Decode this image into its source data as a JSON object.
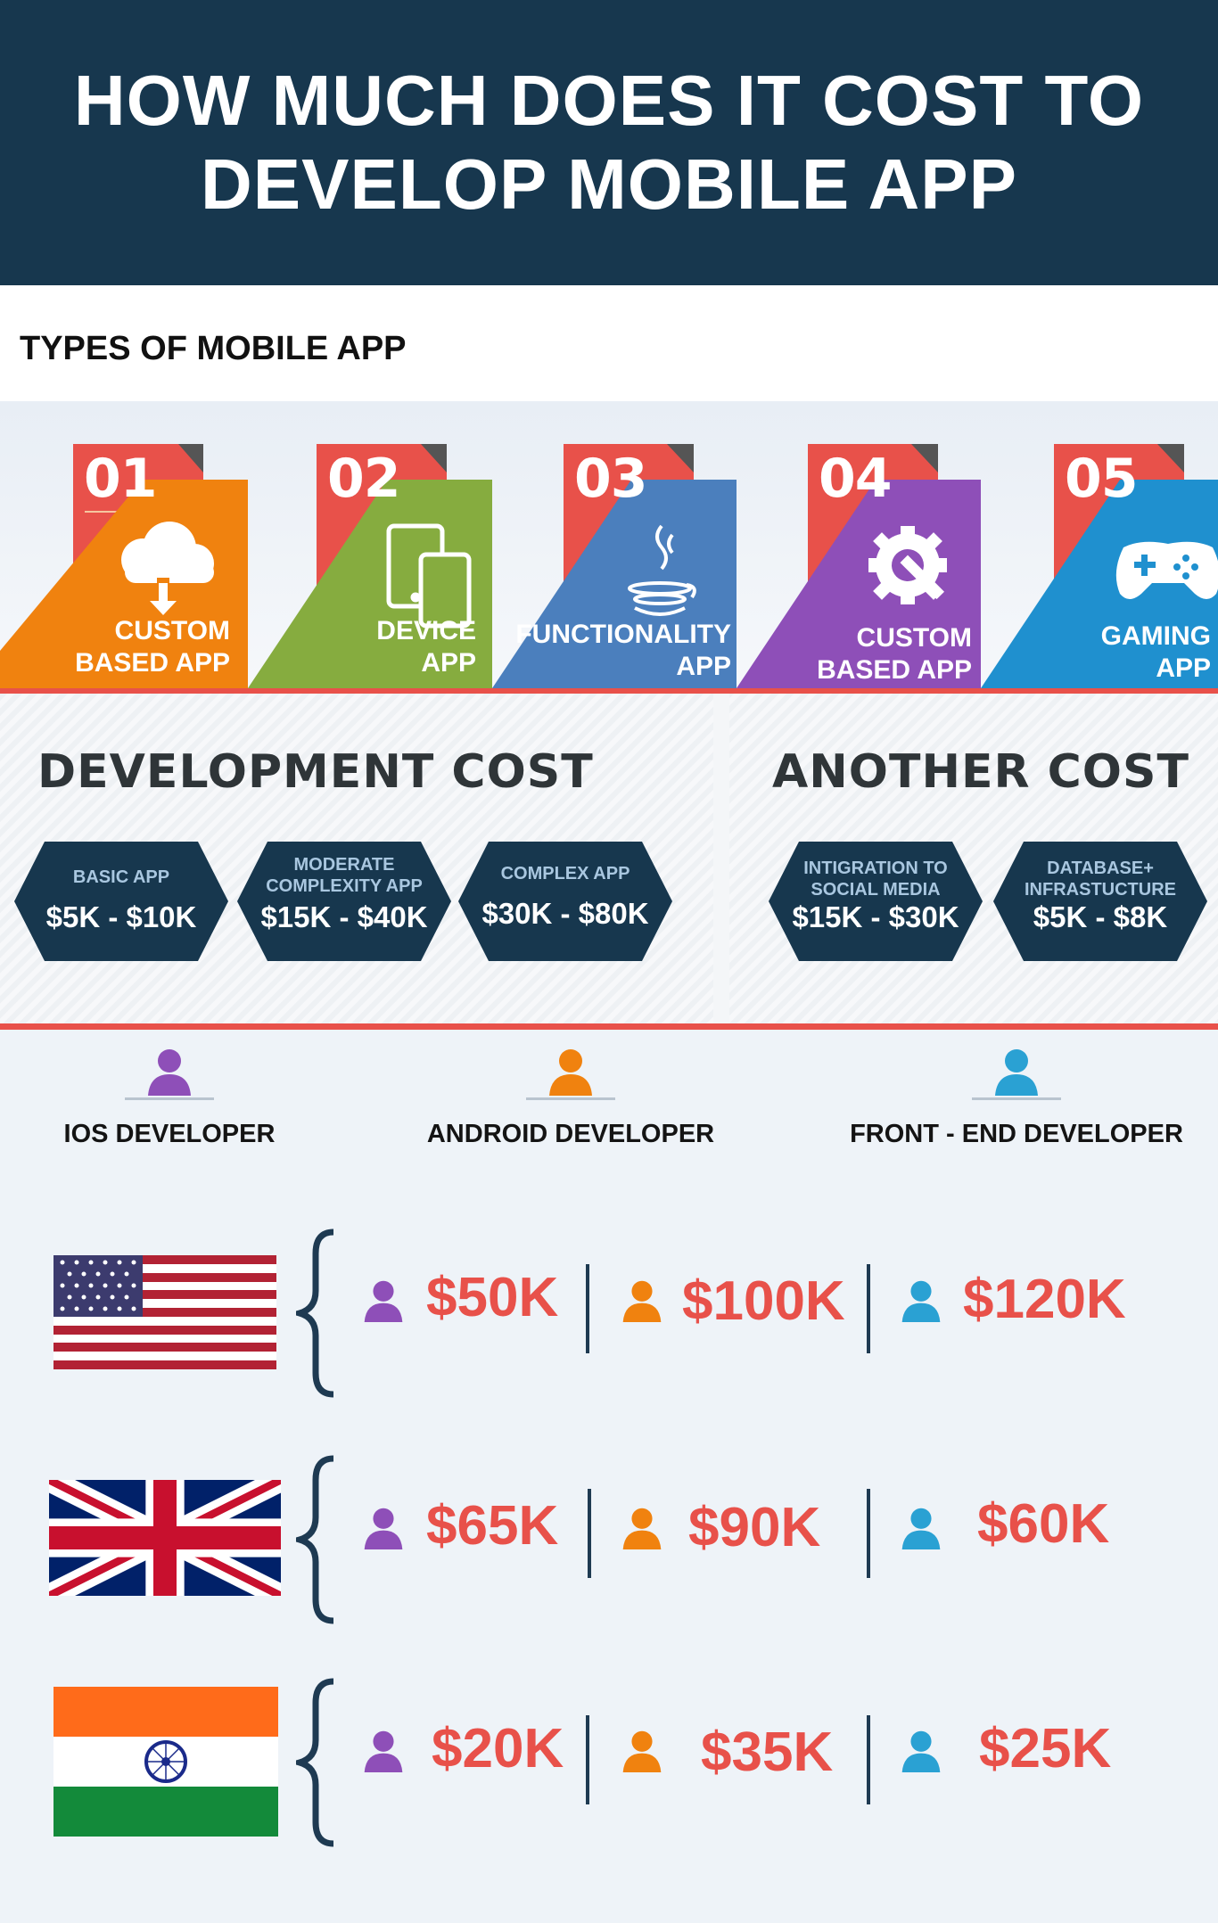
{
  "header": {
    "title_line1": "HOW MUCH DOES IT COST TO",
    "title_line2": "DEVELOP MOBILE APP"
  },
  "types_section": {
    "title": "TYPES OF MOBILE APP",
    "items": [
      {
        "number": "01",
        "label_line1": "CUSTOM",
        "label_line2": "BASED APP",
        "color": "#f0820f",
        "icon": "cloud-download-icon"
      },
      {
        "number": "02",
        "label_line1": "DEVICE",
        "label_line2": "APP",
        "color": "#86ac3f",
        "icon": "devices-icon"
      },
      {
        "number": "03",
        "label_line1": "FUNCTIONALITY",
        "label_line2": "APP",
        "color": "#4b7fbd",
        "icon": "java-cup-icon"
      },
      {
        "number": "04",
        "label_line1": "CUSTOM",
        "label_line2": "BASED APP",
        "color": "#8e4fb8",
        "icon": "gear-wrench-icon"
      },
      {
        "number": "05",
        "label_line1": "GAMING",
        "label_line2": "APP",
        "color": "#1f90cf",
        "icon": "gamepad-icon"
      }
    ],
    "tab_color": "#e8514a"
  },
  "development_cost": {
    "title": "DEVELOPMENT COST",
    "items": [
      {
        "label": "BASIC APP",
        "label2": "",
        "value": "$5K - $10K"
      },
      {
        "label": "MODERATE",
        "label2": "COMPLEXITY APP",
        "value": "$15K - $40K"
      },
      {
        "label": "COMPLEX APP",
        "label2": "",
        "value": "$30K - $80K"
      }
    ]
  },
  "another_cost": {
    "title": "ANOTHER COST",
    "items": [
      {
        "label": "INTIGRATION TO",
        "label2": "SOCIAL MEDIA",
        "value": "$15K - $30K"
      },
      {
        "label": "DATABASE+",
        "label2": "INFRASTUCTURE",
        "value": "$5K - $8K"
      }
    ]
  },
  "developers": [
    {
      "label": "IOS DEVELOPER",
      "color": "#8e4fb8"
    },
    {
      "label": "ANDROID DEVELOPER",
      "color": "#f0820f"
    },
    {
      "label": "FRONT - END DEVELOPER",
      "color": "#2aa1d3"
    }
  ],
  "countries": [
    {
      "flag": "usa-flag",
      "prices": [
        "$50K",
        "$100K",
        "$120K"
      ]
    },
    {
      "flag": "uk-flag",
      "prices": [
        "$65K",
        "$90K",
        "$60K"
      ]
    },
    {
      "flag": "india-flag",
      "prices": [
        "$20K",
        "$35K",
        "$25K"
      ]
    }
  ],
  "colors": {
    "header_bg": "#17374e",
    "accent_red": "#e8514a",
    "hex_fill": "#17374e",
    "brace": "#1e3a52"
  }
}
